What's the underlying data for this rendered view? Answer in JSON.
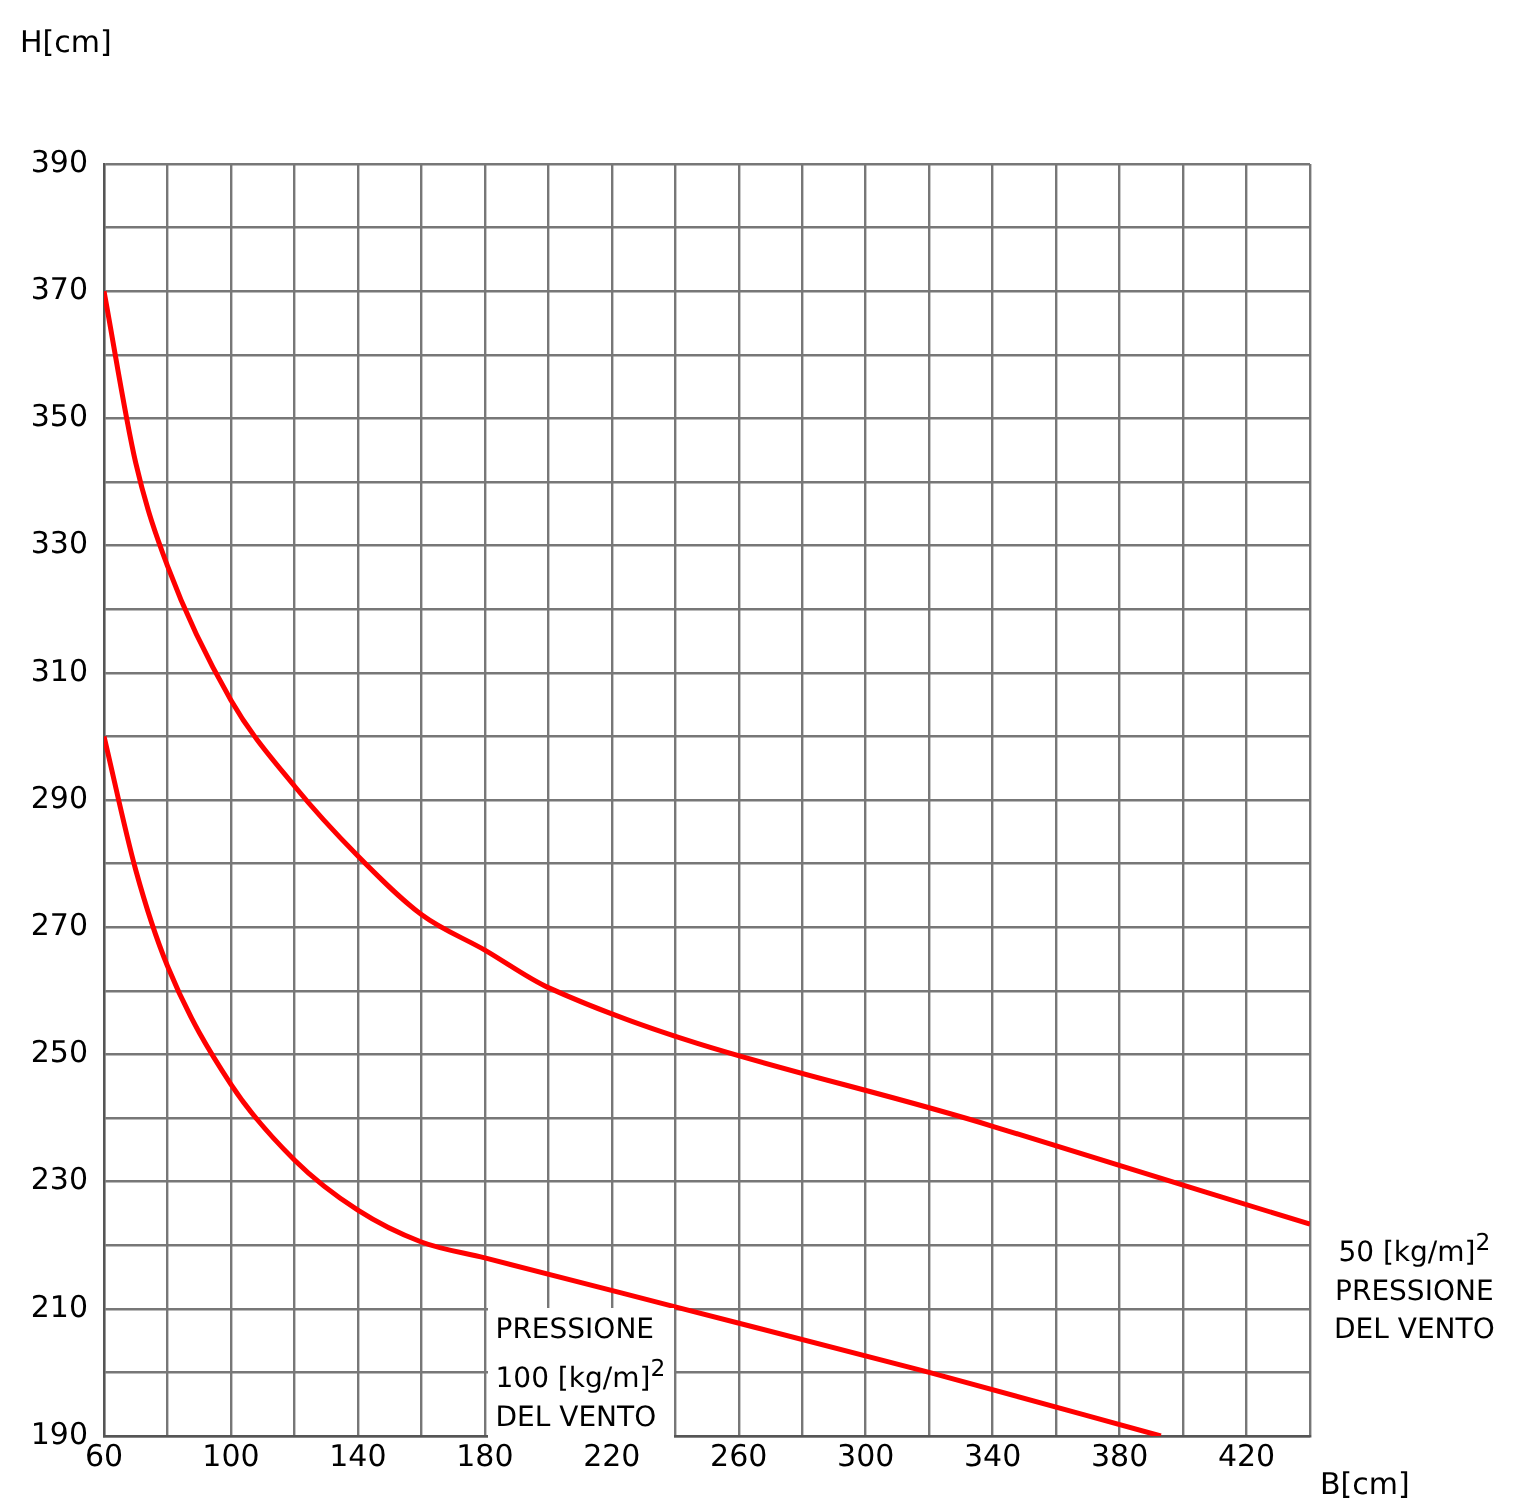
{
  "chart_data": {
    "type": "line",
    "xlabel": "B[cm]",
    "ylabel": "H[cm]",
    "xlim": [
      60,
      440
    ],
    "ylim": [
      190,
      390
    ],
    "xticks": [
      60,
      {
        "value": 80,
        "label": null
      },
      100,
      {
        "value": 120,
        "label": null
      },
      140,
      {
        "value": 160,
        "label": null
      },
      180,
      {
        "value": 200,
        "label": null
      },
      220,
      {
        "value": 240,
        "label": null
      },
      260,
      {
        "value": 280,
        "label": null
      },
      300,
      {
        "value": 320,
        "label": null
      },
      340,
      {
        "value": 360,
        "label": null
      },
      380,
      {
        "value": 400,
        "label": null
      },
      420,
      {
        "value": 440,
        "label": null
      }
    ],
    "yticks": [
      190,
      {
        "value": 200,
        "label": null
      },
      210,
      {
        "value": 220,
        "label": null
      },
      230,
      {
        "value": 240,
        "label": null
      },
      250,
      {
        "value": 260,
        "label": null
      },
      270,
      {
        "value": 280,
        "label": null
      },
      290,
      {
        "value": 300,
        "label": null
      },
      310,
      {
        "value": 320,
        "label": null
      },
      330,
      {
        "value": 340,
        "label": null
      },
      350,
      {
        "value": 360,
        "label": null
      },
      370,
      {
        "value": 380,
        "label": null
      },
      390
    ],
    "grid": true,
    "legend": false,
    "marker": "none",
    "line_style": "solid",
    "series": [
      {
        "name": "50 [kg/m]$^{2}$\nPRESSIONE\nDEL VENTO",
        "color": "#ff0000",
        "x": [
          60,
          70,
          80,
          100,
          120,
          140,
          160,
          180,
          200,
          340,
          440
        ],
        "values": [
          370,
          343,
          326.8,
          305.7,
          292.2,
          281.2,
          272,
          266.4,
          260.5,
          238.7,
          223.3
        ]
      },
      {
        "name": "PRESSIONE\n100 [kg/m]$^{2}$\nDEL VENTO",
        "color": "#ff0000",
        "x": [
          60,
          70,
          80,
          100,
          120,
          140,
          160,
          180,
          240,
          320,
          393
        ],
        "values": [
          300,
          279,
          263.9,
          245.3,
          233.4,
          225.5,
          220.5,
          218,
          210.3,
          200,
          190
        ]
      }
    ]
  }
}
